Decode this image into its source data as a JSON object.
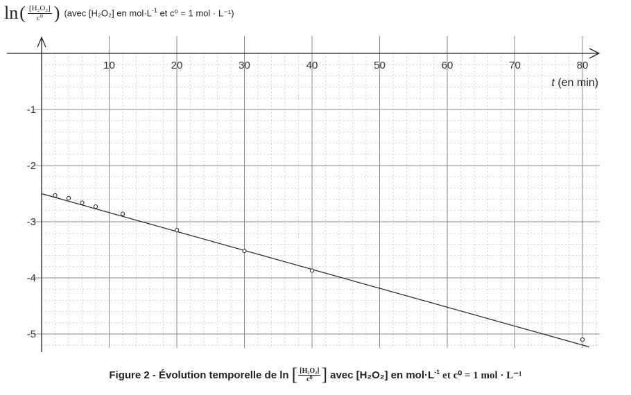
{
  "chart_data": {
    "type": "scatter",
    "title": "",
    "xlabel": "t (en min)",
    "ylabel": "ln([H2O2]/c0)",
    "xlim": [
      0,
      80
    ],
    "ylim": [
      -5.2,
      0
    ],
    "x_ticks": [
      10,
      20,
      30,
      40,
      50,
      60,
      70,
      80
    ],
    "y_ticks": [
      -1,
      -2,
      -3,
      -4,
      -5
    ],
    "grid": true,
    "points": [
      {
        "x": 2,
        "y": -2.53
      },
      {
        "x": 4,
        "y": -2.58
      },
      {
        "x": 6,
        "y": -2.66
      },
      {
        "x": 8,
        "y": -2.73
      },
      {
        "x": 12,
        "y": -2.86
      },
      {
        "x": 20,
        "y": -3.15
      },
      {
        "x": 30,
        "y": -3.52
      },
      {
        "x": 40,
        "y": -3.87
      },
      {
        "x": 80,
        "y": -5.1
      }
    ],
    "fit_line": {
      "x0": 0,
      "y0": -2.5,
      "x1": 81,
      "y1": -5.23
    }
  },
  "y_axis_label": {
    "prefix": "ln",
    "numerator": "[H₂O₂]",
    "denominator": "c⁰",
    "note_pre": "(avec [H₂O₂] en mol·L",
    "note_exp": "-1",
    "note_post": " et c⁰ = 1 mol · L⁻¹)"
  },
  "x_axis_label": "t (en min)",
  "caption": {
    "prefix": "Figure 2 - Évolution temporelle de ln",
    "numerator": "[H₂O₂]",
    "denominator": "c⁰",
    "mid": "avec [H₂O₂] en mol·L",
    "mid_exp": "-1",
    "post": "et c⁰ = 1 mol · L⁻¹"
  }
}
